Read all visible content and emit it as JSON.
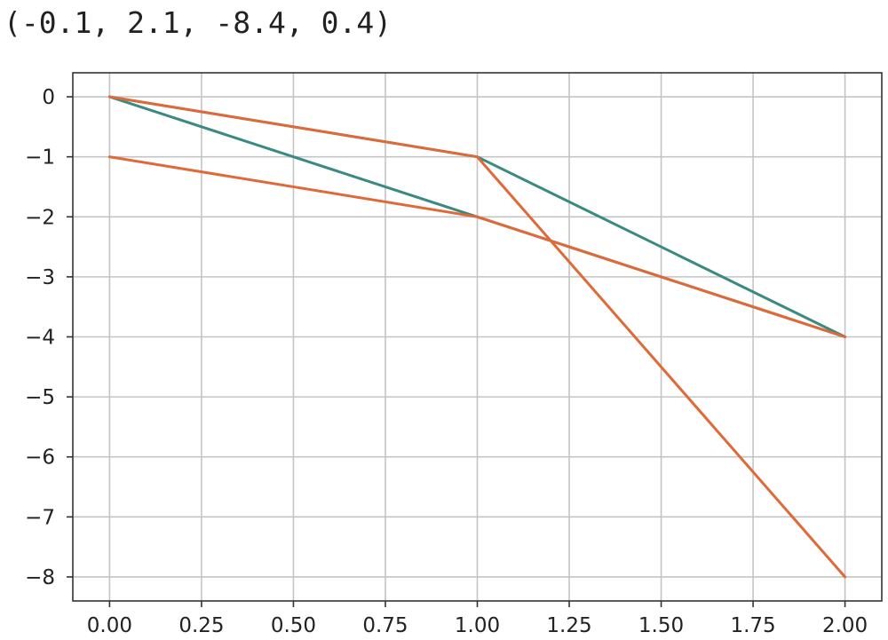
{
  "cell_output": {
    "text": "(-0.1, 2.1, -8.4, 0.4)"
  },
  "chart_data": {
    "type": "line",
    "title": "",
    "xlabel": "",
    "ylabel": "",
    "xlim": [
      -0.1,
      2.1
    ],
    "ylim": [
      -8.4,
      0.4
    ],
    "grid": true,
    "x_ticks": [
      0.0,
      0.25,
      0.5,
      0.75,
      1.0,
      1.25,
      1.5,
      1.75,
      2.0
    ],
    "x_tick_labels": [
      "0.00",
      "0.25",
      "0.50",
      "0.75",
      "1.00",
      "1.25",
      "1.50",
      "1.75",
      "2.00"
    ],
    "y_ticks": [
      0,
      -1,
      -2,
      -3,
      -4,
      -5,
      -6,
      -7,
      -8
    ],
    "y_tick_labels": [
      "0",
      "−1",
      "−2",
      "−3",
      "−4",
      "−5",
      "−6",
      "−7",
      "−8"
    ],
    "series": [
      {
        "color": "#3a8a80",
        "points": [
          [
            0,
            0
          ],
          [
            1,
            -1
          ],
          [
            2,
            -4
          ]
        ]
      },
      {
        "color": "#3a8a80",
        "points": [
          [
            0,
            0
          ],
          [
            1,
            -2
          ],
          [
            2,
            -4
          ]
        ]
      },
      {
        "color": "#e0693a",
        "points": [
          [
            0,
            0
          ],
          [
            1,
            -1
          ],
          [
            2,
            -8
          ]
        ]
      },
      {
        "color": "#e0693a",
        "points": [
          [
            0,
            -1
          ],
          [
            1,
            -2
          ],
          [
            2,
            -4
          ]
        ]
      }
    ]
  }
}
